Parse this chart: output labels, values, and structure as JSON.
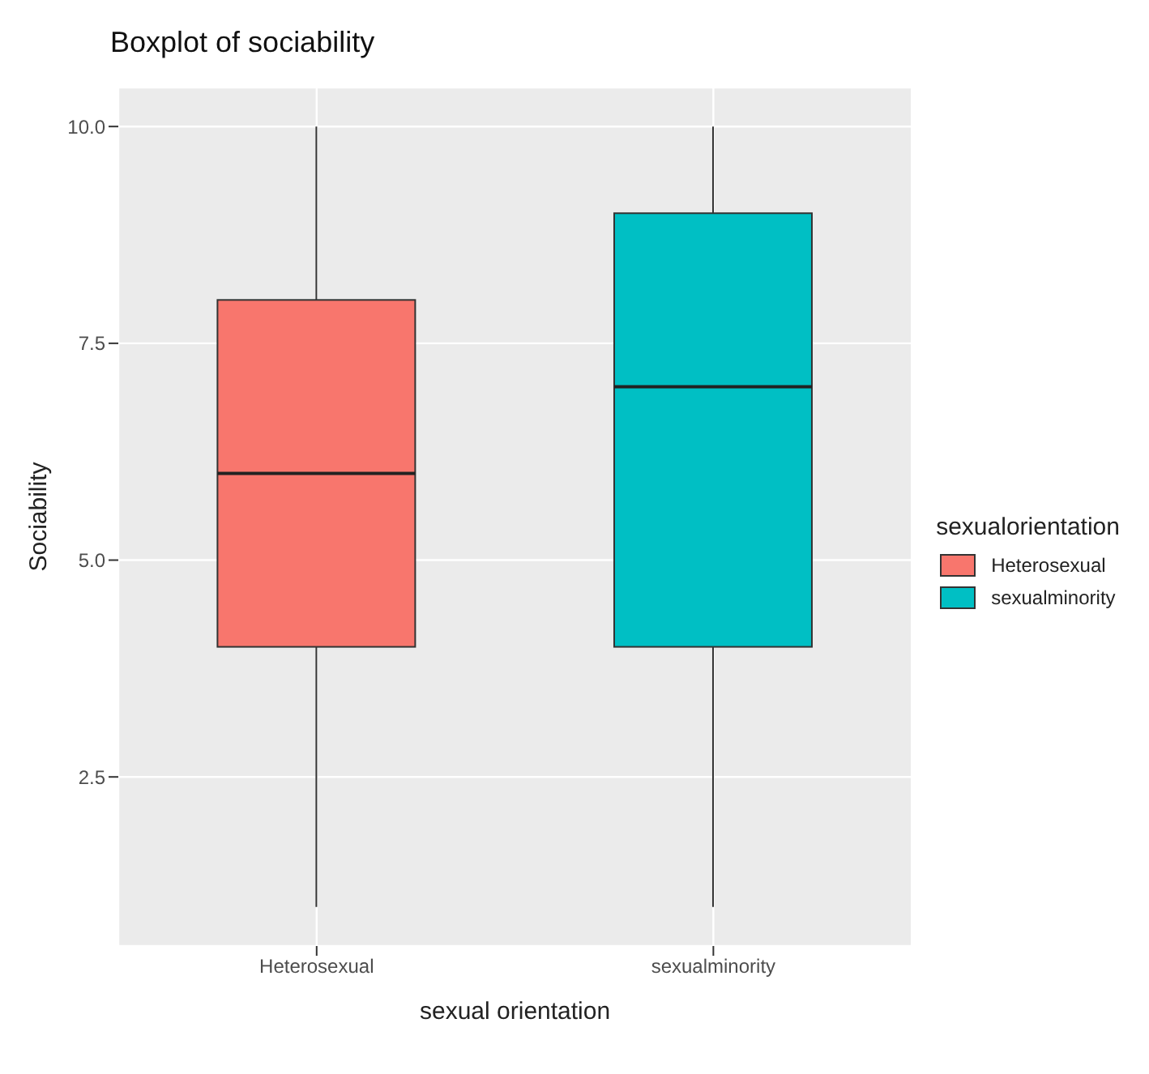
{
  "chart_data": {
    "type": "box",
    "title": "Boxplot of sociability",
    "xlabel": "sexual orientation",
    "ylabel": "Sociability",
    "legend_title": "sexualorientation",
    "categories": [
      "Heterosexual",
      "sexualminority"
    ],
    "series": [
      {
        "name": "Heterosexual",
        "color": "#f8766d",
        "boxes": [
          {
            "low": 1,
            "q1": 4,
            "median": 6,
            "q3": 8,
            "high": 10
          },
          null
        ]
      },
      {
        "name": "sexualminority",
        "color": "#00bfc4",
        "boxes": [
          null,
          {
            "low": 1,
            "q1": 4,
            "median": 7,
            "q3": 9,
            "high": 10
          }
        ]
      }
    ],
    "ylim": [
      0.55,
      10.45
    ],
    "yticks": [
      {
        "value": 2.5,
        "label": "2.5"
      },
      {
        "value": 5,
        "label": "5.0"
      },
      {
        "value": 7.5,
        "label": "7.5"
      },
      {
        "value": 10,
        "label": "10.0"
      }
    ],
    "grid": true,
    "legend": "right"
  }
}
